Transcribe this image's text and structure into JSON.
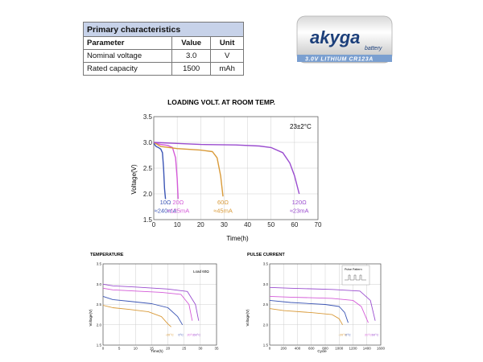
{
  "spec_table": {
    "title": "Primary characteristics",
    "headers": [
      "Parameter",
      "Value",
      "Unit"
    ],
    "rows": [
      [
        "Nominal voltage",
        "3.0",
        "V"
      ],
      [
        "Rated capacity",
        "1500",
        "mAh"
      ]
    ]
  },
  "battery": {
    "brand": "akyga",
    "sub": "battery",
    "band_text": "3.0V LITHIUM CR123A",
    "colors": {
      "band": "#7a9fd0",
      "body": "#f0f0f0",
      "logo": "#1c3f7a"
    }
  },
  "chart_data": [
    {
      "type": "line",
      "title": "LOADING VOLT. AT ROOM TEMP.",
      "annotation": "23±2°C",
      "xlabel": "Time(h)",
      "ylabel": "Voltage(V)",
      "xlim": [
        0,
        70
      ],
      "ylim": [
        1.5,
        3.5
      ],
      "xticks": [
        "0",
        "10",
        "20",
        "30",
        "40",
        "50",
        "60",
        "70"
      ],
      "yticks": [
        "1.5",
        "2.0",
        "2.5",
        "3.0",
        "3.5"
      ],
      "grid": true,
      "series": [
        {
          "resistance": "10Ω",
          "current": "≈240mA",
          "color": "#3b55b5",
          "x": [
            0,
            1,
            2,
            3,
            3.7,
            4.2,
            4.6,
            5
          ],
          "y": [
            2.98,
            2.92,
            2.9,
            2.87,
            2.8,
            2.5,
            2.1,
            1.9
          ]
        },
        {
          "resistance": "20Ω",
          "current": "≈125mA",
          "color": "#d45ad8",
          "x": [
            0,
            1,
            3,
            6,
            8,
            9.3,
            10,
            10.4
          ],
          "y": [
            3.0,
            2.98,
            2.96,
            2.94,
            2.9,
            2.7,
            2.3,
            1.9
          ]
        },
        {
          "resistance": "60Ω",
          "current": "≈45mA",
          "color": "#d99a38",
          "x": [
            0,
            3,
            10,
            20,
            25,
            27,
            28.5,
            29.5
          ],
          "y": [
            3.0,
            2.92,
            2.88,
            2.85,
            2.82,
            2.7,
            2.35,
            1.95
          ]
        },
        {
          "resistance": "120Ω",
          "current": "≈23mA",
          "color": "#9a4ccf",
          "x": [
            0,
            10,
            20,
            35,
            45,
            50,
            55,
            58,
            60,
            62
          ],
          "y": [
            3.0,
            2.98,
            2.96,
            2.95,
            2.93,
            2.9,
            2.8,
            2.6,
            2.35,
            2.0
          ]
        }
      ]
    },
    {
      "type": "line",
      "title": "TEMPERATURE",
      "annotation": "Load 60Ω",
      "xlabel": "Time(h)",
      "ylabel": "Voltage(V)",
      "xlim": [
        0,
        35
      ],
      "ylim": [
        1.5,
        3.5
      ],
      "xticks": [
        "0",
        "5",
        "10",
        "15",
        "20",
        "25",
        "30",
        "35"
      ],
      "yticks": [
        "1.5",
        "2.0",
        "2.5",
        "3.0",
        "3.5"
      ],
      "grid": true,
      "series": [
        {
          "name": "-20°C",
          "color": "#d99a38",
          "x": [
            0,
            3,
            8,
            14,
            18,
            20,
            21
          ],
          "y": [
            2.48,
            2.42,
            2.38,
            2.32,
            2.2,
            2.02,
            1.95
          ]
        },
        {
          "name": "0°C",
          "color": "#3b55b5",
          "x": [
            0,
            3,
            8,
            15,
            20,
            23,
            24.5
          ],
          "y": [
            2.7,
            2.62,
            2.58,
            2.52,
            2.42,
            2.2,
            2.0
          ]
        },
        {
          "name": "20°C",
          "color": "#d45ad8",
          "x": [
            0,
            3,
            10,
            18,
            24,
            26.5,
            27.5
          ],
          "y": [
            2.9,
            2.86,
            2.83,
            2.8,
            2.75,
            2.5,
            2.1
          ]
        },
        {
          "name": "60°C",
          "color": "#9a4ccf",
          "x": [
            0,
            3,
            10,
            20,
            26,
            28.5,
            29.5
          ],
          "y": [
            3.0,
            2.96,
            2.93,
            2.88,
            2.82,
            2.5,
            2.1
          ]
        }
      ]
    },
    {
      "type": "line",
      "title": "PULSE CURRENT",
      "annotation": "Pulse Pattern",
      "xlabel": "Cycle",
      "ylabel": "Voltage(V)",
      "xlim": [
        0,
        1600
      ],
      "ylim": [
        1.5,
        3.5
      ],
      "xticks": [
        "0",
        "200",
        "400",
        "600",
        "800",
        "1000",
        "1200",
        "1400",
        "1600"
      ],
      "yticks": [
        "1.5",
        "2.0",
        "2.5",
        "3.0",
        "3.5"
      ],
      "grid": true,
      "series": [
        {
          "name": "-20°C",
          "color": "#d99a38",
          "x": [
            0,
            200,
            600,
            900,
            1000,
            1050
          ],
          "y": [
            2.4,
            2.35,
            2.3,
            2.25,
            2.15,
            2.0
          ]
        },
        {
          "name": "0°C",
          "color": "#3b55b5",
          "x": [
            0,
            300,
            800,
            1000,
            1080,
            1130
          ],
          "y": [
            2.6,
            2.55,
            2.5,
            2.45,
            2.3,
            2.05
          ]
        },
        {
          "name": "20°C",
          "color": "#d45ad8",
          "x": [
            0,
            300,
            900,
            1200,
            1320,
            1420
          ],
          "y": [
            2.7,
            2.68,
            2.65,
            2.6,
            2.45,
            2.05
          ]
        },
        {
          "name": "60°C",
          "color": "#9a4ccf",
          "x": [
            0,
            300,
            900,
            1300,
            1450,
            1520
          ],
          "y": [
            2.92,
            2.9,
            2.87,
            2.83,
            2.6,
            2.1
          ]
        }
      ]
    }
  ]
}
